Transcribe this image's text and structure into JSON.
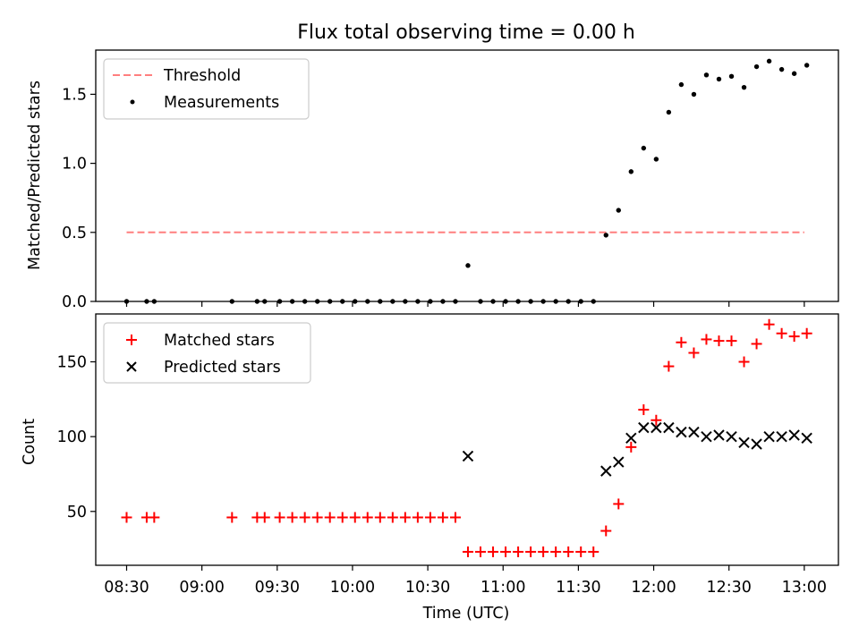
{
  "chart_data": [
    {
      "type": "line",
      "title": "Flux total observing time = 0.00 h",
      "xlabel": "",
      "ylabel": "Matched/Predicted stars",
      "ylim": [
        0,
        1.82
      ],
      "yticks": [
        0.0,
        0.5,
        1.0,
        1.5
      ],
      "ytick_labels": [
        "0.0",
        "0.5",
        "1.0",
        "1.5"
      ],
      "legend_position": "upper-left",
      "series": [
        {
          "name": "Threshold",
          "style": "dashed-line",
          "color": "#ff7f7f",
          "x": [
            "08:30",
            "13:00"
          ],
          "y": [
            0.5,
            0.5
          ]
        },
        {
          "name": "Measurements",
          "style": "scatter-dot",
          "color": "#000000",
          "x": [
            "08:30",
            "08:38",
            "08:41",
            "09:12",
            "09:22",
            "09:25",
            "09:31",
            "09:36",
            "09:41",
            "09:46",
            "09:51",
            "09:56",
            "10:01",
            "10:06",
            "10:11",
            "10:16",
            "10:21",
            "10:26",
            "10:31",
            "10:36",
            "10:41",
            "10:46",
            "10:51",
            "10:56",
            "11:01",
            "11:06",
            "11:11",
            "11:16",
            "11:21",
            "11:26",
            "11:31",
            "11:36",
            "11:41",
            "11:46",
            "11:51",
            "11:56",
            "12:01",
            "12:06",
            "12:11",
            "12:16",
            "12:21",
            "12:26",
            "12:31",
            "12:36",
            "12:41",
            "12:46",
            "12:51",
            "12:56",
            "13:01"
          ],
          "y": [
            0,
            0,
            0,
            0,
            0,
            0,
            0,
            0,
            0,
            0,
            0,
            0,
            0,
            0,
            0,
            0,
            0,
            0,
            0,
            0,
            0,
            0.26,
            0,
            0,
            0,
            0,
            0,
            0,
            0,
            0,
            0,
            0,
            0.48,
            0.66,
            0.94,
            1.11,
            1.03,
            1.37,
            1.57,
            1.5,
            1.64,
            1.61,
            1.63,
            1.55,
            1.7,
            1.74,
            1.68,
            1.65,
            1.71
          ]
        }
      ]
    },
    {
      "type": "scatter",
      "title": "",
      "xlabel": "Time (UTC)",
      "ylabel": "Count",
      "ylim": [
        14,
        182
      ],
      "yticks": [
        50,
        100,
        150
      ],
      "ytick_labels": [
        "50",
        "100",
        "150"
      ],
      "xticks": [
        "08:30",
        "09:00",
        "09:30",
        "10:00",
        "10:30",
        "11:00",
        "11:30",
        "12:00",
        "12:30",
        "13:00"
      ],
      "legend_position": "upper-left",
      "series": [
        {
          "name": "Matched stars",
          "marker": "plus",
          "color": "#ff0000",
          "x": [
            "08:30",
            "08:38",
            "08:41",
            "09:12",
            "09:22",
            "09:25",
            "09:31",
            "09:36",
            "09:41",
            "09:46",
            "09:51",
            "09:56",
            "10:01",
            "10:06",
            "10:11",
            "10:16",
            "10:21",
            "10:26",
            "10:31",
            "10:36",
            "10:41",
            "10:46",
            "10:51",
            "10:56",
            "11:01",
            "11:06",
            "11:11",
            "11:16",
            "11:21",
            "11:26",
            "11:31",
            "11:36",
            "11:41",
            "11:46",
            "11:51",
            "11:56",
            "12:01",
            "12:06",
            "12:11",
            "12:16",
            "12:21",
            "12:26",
            "12:31",
            "12:36",
            "12:41",
            "12:46",
            "12:51",
            "12:56",
            "13:01"
          ],
          "y": [
            46,
            46,
            46,
            46,
            46,
            46,
            46,
            46,
            46,
            46,
            46,
            46,
            46,
            46,
            46,
            46,
            46,
            46,
            46,
            46,
            46,
            23,
            23,
            23,
            23,
            23,
            23,
            23,
            23,
            23,
            23,
            23,
            37,
            55,
            93,
            118,
            111,
            147,
            163,
            156,
            165,
            164,
            164,
            150,
            162,
            175,
            169,
            167,
            169
          ]
        },
        {
          "name": "Predicted stars",
          "marker": "x",
          "color": "#000000",
          "x": [
            "10:46",
            "11:41",
            "11:46",
            "11:51",
            "11:56",
            "12:01",
            "12:06",
            "12:11",
            "12:16",
            "12:21",
            "12:26",
            "12:31",
            "12:36",
            "12:41",
            "12:46",
            "12:51",
            "12:56",
            "13:01"
          ],
          "y": [
            87,
            77,
            83,
            99,
            106,
            106,
            106,
            103,
            103,
            100,
            101,
            100,
            96,
            95,
            100,
            100,
            101,
            99
          ]
        }
      ]
    }
  ]
}
